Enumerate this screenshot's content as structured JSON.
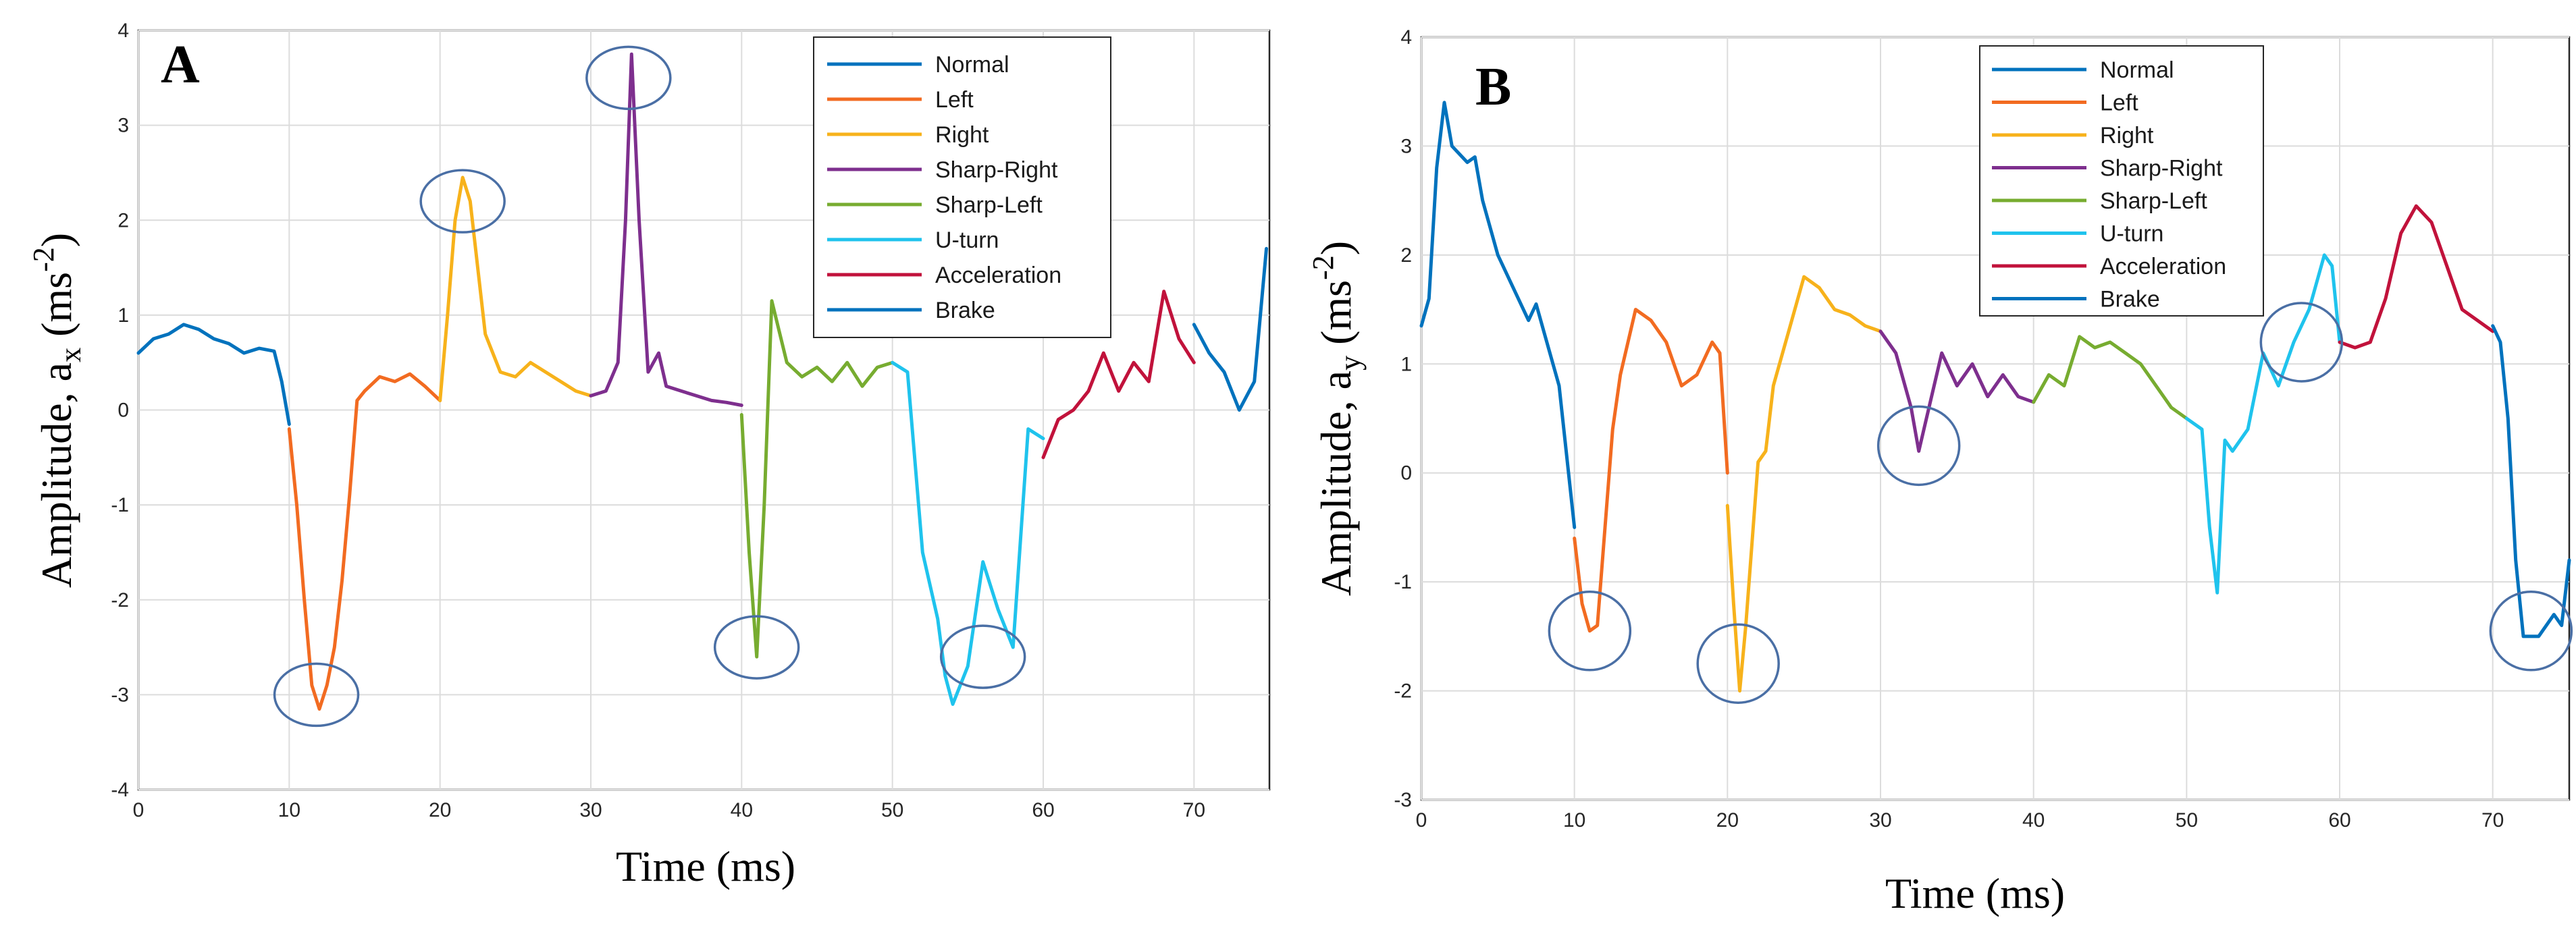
{
  "chart_data": [
    {
      "type": "line",
      "panel_label": "A",
      "xlabel": "Time (ms)",
      "ylabel_main": "Amplitude,  a",
      "ylabel_sub": "x",
      "ylabel_unit_pre": " (ms",
      "ylabel_unit_sup": "-2",
      "ylabel_unit_post": ")",
      "xlim": [
        0,
        75
      ],
      "ylim": [
        -4,
        4
      ],
      "xticks": [
        "0",
        "10",
        "20",
        "30",
        "40",
        "50",
        "60",
        "70"
      ],
      "yticks": [
        "-4",
        "-3",
        "-2",
        "-1",
        "0",
        "1",
        "2",
        "3",
        "4"
      ],
      "legend": "top-right",
      "series": [
        {
          "name": "Normal",
          "color": "#0072BD",
          "x": [
            0,
            1,
            2,
            3,
            4,
            5,
            6,
            7,
            8,
            9,
            9.5,
            10
          ],
          "y": [
            0.6,
            0.75,
            0.8,
            0.9,
            0.85,
            0.75,
            0.7,
            0.6,
            0.65,
            0.62,
            0.3,
            -0.15
          ]
        },
        {
          "name": "Left",
          "color": "#F26B21",
          "x": [
            10,
            10.5,
            11,
            11.5,
            12,
            12.5,
            13,
            13.5,
            14,
            14.5,
            15,
            16,
            17,
            18,
            19,
            20
          ],
          "y": [
            -0.2,
            -1.0,
            -2.0,
            -2.9,
            -3.15,
            -2.9,
            -2.5,
            -1.8,
            -0.9,
            0.1,
            0.2,
            0.35,
            0.3,
            0.38,
            0.25,
            0.1
          ]
        },
        {
          "name": "Right",
          "color": "#F7B21B",
          "x": [
            20,
            20.5,
            21,
            21.5,
            22,
            22.5,
            23,
            24,
            25,
            26,
            27,
            28,
            29,
            30
          ],
          "y": [
            0.1,
            1.0,
            2.0,
            2.45,
            2.2,
            1.5,
            0.8,
            0.4,
            0.35,
            0.5,
            0.4,
            0.3,
            0.2,
            0.15
          ]
        },
        {
          "name": "Sharp-Right",
          "color": "#7E2F8E",
          "x": [
            30,
            31,
            31.8,
            32.3,
            32.7,
            33.2,
            33.8,
            34.5,
            35,
            36,
            37,
            38,
            39,
            40
          ],
          "y": [
            0.15,
            0.2,
            0.5,
            2.0,
            3.75,
            2.0,
            0.4,
            0.6,
            0.25,
            0.2,
            0.15,
            0.1,
            0.08,
            0.05
          ]
        },
        {
          "name": "Sharp-Left",
          "color": "#77AC30",
          "x": [
            40,
            40.5,
            41,
            41.5,
            42,
            43,
            44,
            45,
            46,
            47,
            48,
            49,
            50
          ],
          "y": [
            -0.05,
            -1.5,
            -2.6,
            -1.0,
            1.15,
            0.5,
            0.35,
            0.45,
            0.3,
            0.5,
            0.25,
            0.45,
            0.5
          ]
        },
        {
          "name": "U-turn",
          "color": "#1FC3ED",
          "x": [
            50,
            51,
            52,
            53,
            53.5,
            54,
            55,
            56,
            57,
            58,
            59,
            60
          ],
          "y": [
            0.5,
            0.4,
            -1.5,
            -2.2,
            -2.8,
            -3.1,
            -2.7,
            -1.6,
            -2.1,
            -2.5,
            -0.2,
            -0.3
          ]
        },
        {
          "name": "Acceleration",
          "color": "#C1123B",
          "x": [
            60,
            61,
            62,
            63,
            64,
            65,
            66,
            67,
            68,
            69,
            70
          ],
          "y": [
            -0.5,
            -0.1,
            0.0,
            0.2,
            0.6,
            0.2,
            0.5,
            0.3,
            1.25,
            0.75,
            0.5
          ]
        },
        {
          "name": "Brake",
          "color": "#0072BD",
          "x": [
            70,
            71,
            72,
            73,
            74,
            74.8
          ],
          "y": [
            0.9,
            0.6,
            0.4,
            0.0,
            0.3,
            1.7
          ]
        }
      ],
      "annotations": [
        {
          "type": "ellipse",
          "x": 11.8,
          "y": -3.0
        },
        {
          "type": "ellipse",
          "x": 21.5,
          "y": 2.2
        },
        {
          "type": "ellipse",
          "x": 32.5,
          "y": 3.5
        },
        {
          "type": "ellipse",
          "x": 41.0,
          "y": -2.5
        },
        {
          "type": "ellipse",
          "x": 56.0,
          "y": -2.6
        }
      ]
    },
    {
      "type": "line",
      "panel_label": "B",
      "xlabel": "Time (ms)",
      "ylabel_main": "Amplitude,  a",
      "ylabel_sub": "y",
      "ylabel_unit_pre": " (ms",
      "ylabel_unit_sup": "-2",
      "ylabel_unit_post": ")",
      "xlim": [
        0,
        75
      ],
      "ylim": [
        -3,
        4
      ],
      "xticks": [
        "0",
        "10",
        "20",
        "30",
        "40",
        "50",
        "60",
        "70"
      ],
      "yticks": [
        "-3",
        "-2",
        "-1",
        "0",
        "1",
        "2",
        "3",
        "4"
      ],
      "legend": "top-right",
      "series": [
        {
          "name": "Normal",
          "color": "#0072BD",
          "x": [
            0,
            0.5,
            1,
            1.5,
            2,
            3,
            3.5,
            4,
            5,
            6,
            7,
            7.5,
            8,
            9,
            10
          ],
          "y": [
            1.35,
            1.6,
            2.8,
            3.4,
            3.0,
            2.85,
            2.9,
            2.5,
            2.0,
            1.7,
            1.4,
            1.55,
            1.3,
            0.8,
            -0.5
          ]
        },
        {
          "name": "Left",
          "color": "#F26B21",
          "x": [
            10,
            10.5,
            11,
            11.5,
            12,
            12.5,
            13,
            14,
            15,
            16,
            17,
            18,
            19,
            19.5,
            20
          ],
          "y": [
            -0.6,
            -1.2,
            -1.45,
            -1.4,
            -0.5,
            0.4,
            0.9,
            1.5,
            1.4,
            1.2,
            0.8,
            0.9,
            1.2,
            1.1,
            0.0
          ]
        },
        {
          "name": "Right",
          "color": "#F7B21B",
          "x": [
            20,
            20.4,
            20.8,
            21.2,
            22,
            22.5,
            23,
            24,
            25,
            26,
            27,
            28,
            29,
            30
          ],
          "y": [
            -0.3,
            -1.2,
            -2.0,
            -1.4,
            0.1,
            0.2,
            0.8,
            1.3,
            1.8,
            1.7,
            1.5,
            1.45,
            1.35,
            1.3
          ]
        },
        {
          "name": "Sharp-Right",
          "color": "#7E2F8E",
          "x": [
            30,
            31,
            32,
            32.5,
            33,
            34,
            35,
            36,
            37,
            38,
            39,
            40
          ],
          "y": [
            1.3,
            1.1,
            0.6,
            0.2,
            0.5,
            1.1,
            0.8,
            1.0,
            0.7,
            0.9,
            0.7,
            0.65
          ]
        },
        {
          "name": "Sharp-Left",
          "color": "#77AC30",
          "x": [
            40,
            41,
            42,
            43,
            44,
            45,
            46,
            47,
            48,
            49,
            50
          ],
          "y": [
            0.65,
            0.9,
            0.8,
            1.25,
            1.15,
            1.2,
            1.1,
            1.0,
            0.8,
            0.6,
            0.5
          ]
        },
        {
          "name": "U-turn",
          "color": "#1FC3ED",
          "x": [
            50,
            51,
            51.5,
            52,
            52.5,
            53,
            54,
            55,
            56,
            57,
            58,
            59,
            59.5,
            60
          ],
          "y": [
            0.5,
            0.4,
            -0.5,
            -1.1,
            0.3,
            0.2,
            0.4,
            1.1,
            0.8,
            1.2,
            1.5,
            2.0,
            1.9,
            1.2
          ]
        },
        {
          "name": "Acceleration",
          "color": "#C1123B",
          "x": [
            60,
            61,
            62,
            63,
            64,
            65,
            66,
            67,
            68,
            69,
            70
          ],
          "y": [
            1.2,
            1.15,
            1.2,
            1.6,
            2.2,
            2.45,
            2.3,
            1.9,
            1.5,
            1.4,
            1.3
          ]
        },
        {
          "name": "Brake",
          "color": "#0072BD",
          "x": [
            70,
            70.5,
            71,
            71.5,
            72,
            73,
            74,
            74.5,
            75
          ],
          "y": [
            1.35,
            1.2,
            0.5,
            -0.8,
            -1.5,
            -1.5,
            -1.3,
            -1.4,
            -0.8
          ]
        }
      ],
      "annotations": [
        {
          "type": "ellipse",
          "x": 11.0,
          "y": -1.45
        },
        {
          "type": "ellipse",
          "x": 20.7,
          "y": -1.75
        },
        {
          "type": "ellipse",
          "x": 32.5,
          "y": 0.25
        },
        {
          "type": "ellipse",
          "x": 57.5,
          "y": 1.2
        },
        {
          "type": "ellipse",
          "x": 72.5,
          "y": -1.45
        }
      ]
    }
  ]
}
